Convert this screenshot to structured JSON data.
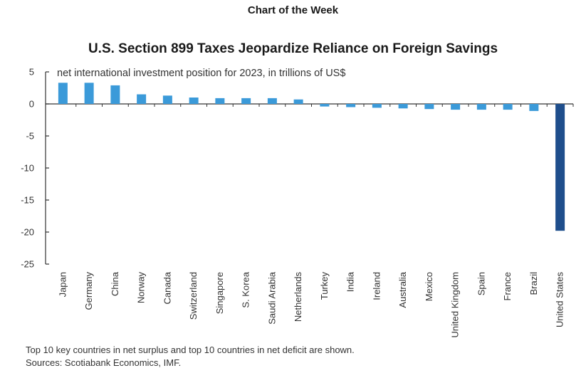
{
  "header": "Chart of the Week",
  "chart_data": {
    "type": "bar",
    "title": "U.S. Section 899 Taxes Jeopardize Reliance on Foreign Savings",
    "subtitle": "net international investment position for 2023, in trillions of US$",
    "categories": [
      "Japan",
      "Germany",
      "China",
      "Norway",
      "Canada",
      "Switzerland",
      "Singapore",
      "S. Korea",
      "Saudi Arabia",
      "Netherlands",
      "Turkey",
      "India",
      "Ireland",
      "Australia",
      "Mexico",
      "United Kingdom",
      "Spain",
      "France",
      "Brazil",
      "United States"
    ],
    "values": [
      3.3,
      3.3,
      2.9,
      1.5,
      1.3,
      1.0,
      0.9,
      0.9,
      0.9,
      0.7,
      -0.4,
      -0.5,
      -0.6,
      -0.7,
      -0.8,
      -0.9,
      -0.9,
      -0.9,
      -1.1,
      -19.8
    ],
    "ylim": [
      -25,
      5
    ],
    "yticks": [
      5,
      0,
      -5,
      -10,
      -15,
      -20,
      -25
    ],
    "ytick_labels": [
      "5",
      "0",
      "-5",
      "-10",
      "-15",
      "-20",
      "-25"
    ],
    "bar_color": "#3b9ad9",
    "highlight_color": "#1f4e8c",
    "highlight_category": "United States"
  },
  "notes": {
    "line1": "Top 10 key countries in net surplus and top 10 countries in net deficit are shown.",
    "line2": "Sources: Scotiabank Economics, IMF."
  }
}
